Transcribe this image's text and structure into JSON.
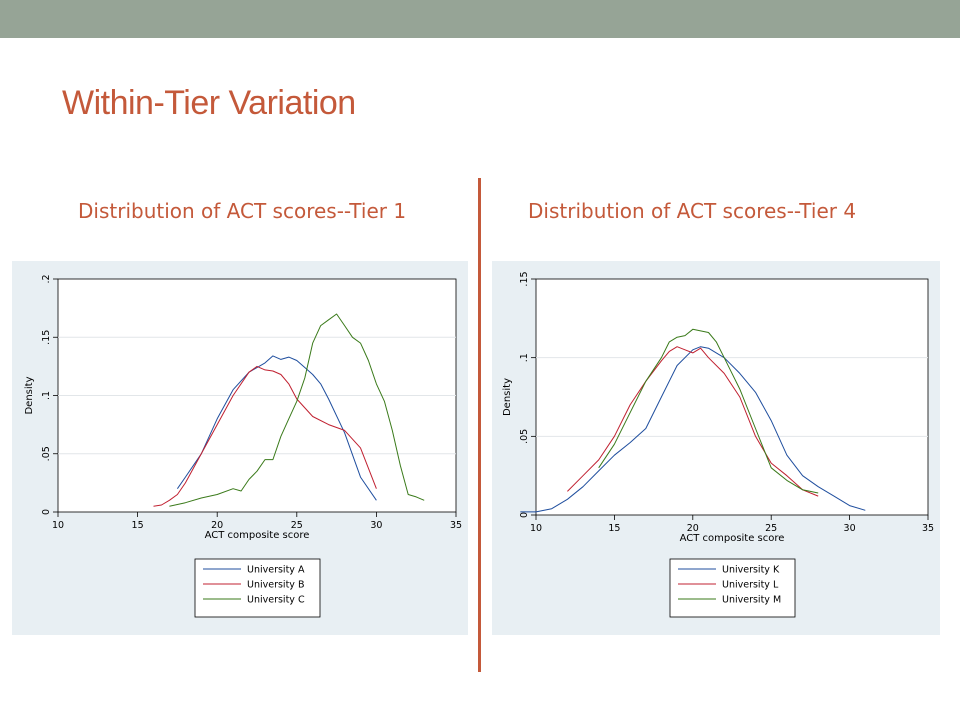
{
  "slide": {
    "title": "Within-Tier Variation",
    "left_subtitle": "Distribution of ACT scores--Tier 1",
    "right_subtitle": "Distribution of ACT scores--Tier 4"
  },
  "colors": {
    "title": "#c4593a",
    "top_bar": "#96a496",
    "panel_bg": "#e8eff3",
    "series": [
      "#1f4e9e",
      "#c02030",
      "#3a7a1a"
    ]
  },
  "chart_data": [
    {
      "type": "line",
      "xlabel": "ACT composite score",
      "ylabel": "Density",
      "xlim": [
        10,
        35
      ],
      "ylim": [
        0,
        0.2
      ],
      "xticks": [
        "10",
        "15",
        "20",
        "25",
        "30",
        "35"
      ],
      "yticks": [
        "0",
        ".05",
        ".1",
        ".15",
        ".2"
      ],
      "grid": true,
      "legend": "below",
      "series": [
        {
          "name": "University A",
          "x": [
            17.5,
            18,
            19,
            20,
            21,
            22,
            23,
            23.5,
            24,
            24.5,
            25,
            25.5,
            26,
            26.5,
            27,
            28,
            29,
            30
          ],
          "values": [
            0.02,
            0.03,
            0.05,
            0.08,
            0.105,
            0.12,
            0.128,
            0.134,
            0.131,
            0.133,
            0.13,
            0.124,
            0.118,
            0.11,
            0.097,
            0.068,
            0.03,
            0.01
          ]
        },
        {
          "name": "University B",
          "x": [
            16,
            16.5,
            17,
            17.5,
            18,
            19,
            20,
            21,
            22,
            22.5,
            23,
            23.5,
            24,
            24.5,
            25,
            26,
            27,
            28,
            29,
            30
          ],
          "values": [
            0.005,
            0.006,
            0.01,
            0.015,
            0.025,
            0.05,
            0.075,
            0.1,
            0.12,
            0.125,
            0.122,
            0.121,
            0.118,
            0.11,
            0.097,
            0.082,
            0.075,
            0.07,
            0.055,
            0.02
          ]
        },
        {
          "name": "University C",
          "x": [
            17,
            18,
            19,
            20,
            21,
            21.5,
            22,
            22.5,
            23,
            23.5,
            24,
            24.5,
            25,
            25.5,
            26,
            26.5,
            27,
            27.5,
            28,
            28.5,
            29,
            29.5,
            30,
            30.5,
            31,
            31.5,
            32,
            32.5,
            33
          ],
          "values": [
            0.005,
            0.008,
            0.012,
            0.015,
            0.02,
            0.018,
            0.028,
            0.035,
            0.045,
            0.045,
            0.065,
            0.08,
            0.095,
            0.115,
            0.145,
            0.16,
            0.165,
            0.17,
            0.16,
            0.15,
            0.145,
            0.13,
            0.11,
            0.095,
            0.07,
            0.04,
            0.015,
            0.013,
            0.01
          ]
        }
      ]
    },
    {
      "type": "line",
      "xlabel": "ACT composite score",
      "ylabel": "Density",
      "xlim": [
        10,
        35
      ],
      "ylim": [
        0,
        0.15
      ],
      "xticks": [
        "10",
        "15",
        "20",
        "25",
        "30",
        "35"
      ],
      "yticks": [
        "0",
        ".05",
        ".1",
        ".15"
      ],
      "grid": true,
      "legend": "below",
      "series": [
        {
          "name": "University K",
          "x": [
            9,
            10,
            11,
            12,
            13,
            14,
            15,
            16,
            17,
            18,
            19,
            20,
            20.5,
            21,
            21.5,
            22,
            23,
            24,
            25,
            26,
            27,
            28,
            29,
            30,
            31
          ],
          "values": [
            0.002,
            0.002,
            0.004,
            0.01,
            0.018,
            0.028,
            0.038,
            0.046,
            0.055,
            0.075,
            0.095,
            0.105,
            0.107,
            0.106,
            0.103,
            0.1,
            0.09,
            0.078,
            0.06,
            0.038,
            0.025,
            0.018,
            0.012,
            0.006,
            0.003
          ]
        },
        {
          "name": "University L",
          "x": [
            12,
            13,
            14,
            15,
            16,
            17,
            18,
            18.5,
            19,
            19.5,
            20,
            20.5,
            21,
            22,
            23,
            24,
            25,
            26,
            27,
            28
          ],
          "values": [
            0.015,
            0.025,
            0.035,
            0.05,
            0.07,
            0.085,
            0.098,
            0.104,
            0.107,
            0.105,
            0.103,
            0.106,
            0.1,
            0.09,
            0.075,
            0.05,
            0.033,
            0.025,
            0.016,
            0.012
          ]
        },
        {
          "name": "University M",
          "x": [
            14,
            15,
            16,
            17,
            18,
            18.5,
            19,
            19.5,
            20,
            20.5,
            21,
            21.5,
            22,
            23,
            24,
            25,
            26,
            27,
            28
          ],
          "values": [
            0.03,
            0.045,
            0.065,
            0.085,
            0.1,
            0.11,
            0.113,
            0.114,
            0.118,
            0.117,
            0.116,
            0.11,
            0.1,
            0.08,
            0.055,
            0.03,
            0.022,
            0.016,
            0.014
          ]
        }
      ]
    }
  ]
}
